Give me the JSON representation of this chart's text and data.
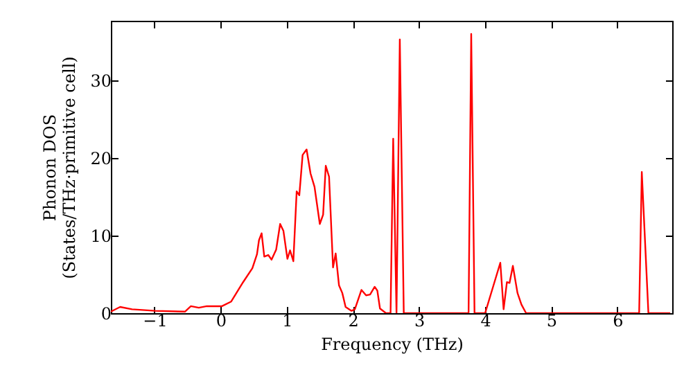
{
  "chart_data": {
    "type": "line",
    "xlabel": "Frequency (THz)",
    "ylabel": "Phonon DOS\n(States/THz·primitive cell)",
    "x": [
      -1.66,
      -1.52,
      -1.34,
      -0.99,
      -0.54,
      -0.45,
      -0.33,
      -0.21,
      0.02,
      0.16,
      0.34,
      0.48,
      0.55,
      0.58,
      0.62,
      0.66,
      0.72,
      0.77,
      0.84,
      0.9,
      0.95,
      1.01,
      1.05,
      1.1,
      1.15,
      1.19,
      1.24,
      1.3,
      1.36,
      1.42,
      1.5,
      1.55,
      1.59,
      1.64,
      1.7,
      1.74,
      1.79,
      1.84,
      1.89,
      1.98,
      2.03,
      2.13,
      2.2,
      2.26,
      2.33,
      2.37,
      2.41,
      2.5,
      2.57,
      2.61,
      2.66,
      2.71,
      2.77,
      3.75,
      3.79,
      3.84,
      4.0,
      4.23,
      4.28,
      4.33,
      4.37,
      4.42,
      4.49,
      4.55,
      4.62,
      6.33,
      6.37,
      6.47,
      6.8
    ],
    "series": [
      {
        "color": "#ff0000",
        "values": [
          0.2,
          0.8,
          0.5,
          0.3,
          0.2,
          0.9,
          0.7,
          0.9,
          0.9,
          1.5,
          4.0,
          5.8,
          7.6,
          9.4,
          10.3,
          7.3,
          7.5,
          6.9,
          8.2,
          11.5,
          10.6,
          7.0,
          8.1,
          6.7,
          15.7,
          15.2,
          20.4,
          21.1,
          18.0,
          16.3,
          11.5,
          12.7,
          19.0,
          17.6,
          5.9,
          7.7,
          3.6,
          2.6,
          0.8,
          0.3,
          0.5,
          3.0,
          2.3,
          2.4,
          3.4,
          2.9,
          0.6,
          0,
          0,
          22.5,
          0,
          35.3,
          0,
          0,
          36.0,
          0,
          0,
          6.5,
          0.5,
          4.0,
          3.9,
          6.1,
          2.6,
          1.1,
          0,
          0,
          18.2,
          0,
          0
        ]
      }
    ],
    "xlim": [
      -1.66,
      6.83
    ],
    "ylim": [
      0,
      37.7
    ],
    "xticks": [
      {
        "value": -1,
        "label": "−1"
      },
      0,
      1,
      2,
      3,
      4,
      5,
      6
    ],
    "yticks": [
      0,
      10,
      20,
      30
    ],
    "grid": false,
    "line_style": "solid",
    "marker": "none"
  }
}
